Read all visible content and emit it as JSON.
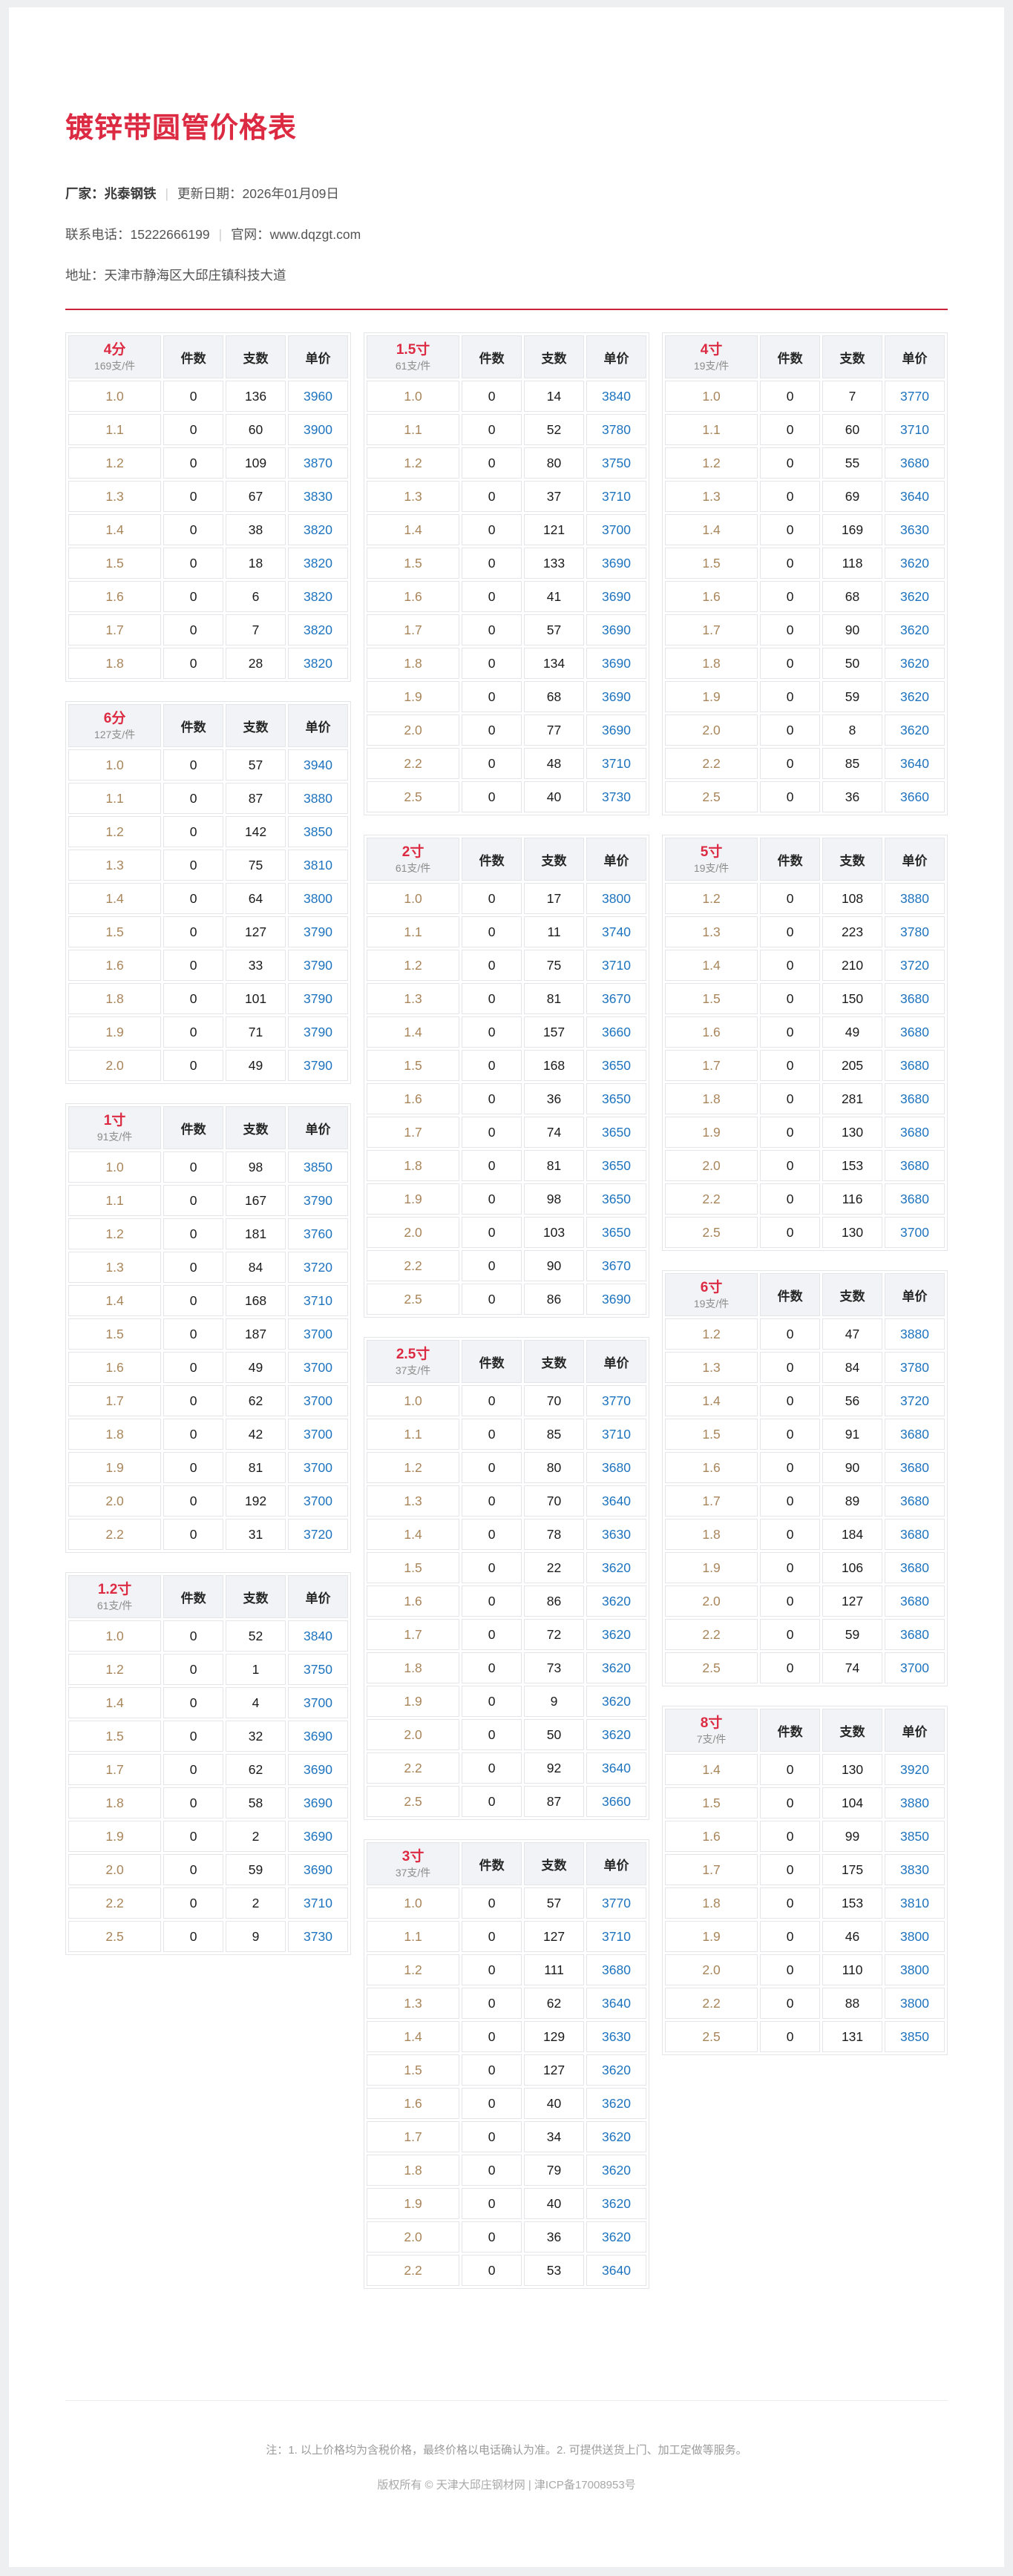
{
  "header": {
    "title": "镀锌带圆管价格表",
    "vendor_label": "厂家：",
    "vendor": "兆泰钢铁",
    "separator": "|",
    "updated_label": "更新日期：",
    "updated": "2026年01月09日",
    "phone_label": "联系电话：",
    "phone": "15222666199",
    "website_label": "官网：",
    "website": "www.dqzgt.com",
    "address_label": "地址：",
    "address": "天津市静海区大邱庄镇科技大道"
  },
  "table_columns": {
    "qty": "件数",
    "count": "支数",
    "price": "单价"
  },
  "columns": [
    {
      "tables": [
        {
          "size": "4分",
          "bundle": "169支/件",
          "rows": [
            [
              "1.0",
              "0",
              "136",
              "3960"
            ],
            [
              "1.1",
              "0",
              "60",
              "3900"
            ],
            [
              "1.2",
              "0",
              "109",
              "3870"
            ],
            [
              "1.3",
              "0",
              "67",
              "3830"
            ],
            [
              "1.4",
              "0",
              "38",
              "3820"
            ],
            [
              "1.5",
              "0",
              "18",
              "3820"
            ],
            [
              "1.6",
              "0",
              "6",
              "3820"
            ],
            [
              "1.7",
              "0",
              "7",
              "3820"
            ],
            [
              "1.8",
              "0",
              "28",
              "3820"
            ]
          ]
        },
        {
          "size": "6分",
          "bundle": "127支/件",
          "rows": [
            [
              "1.0",
              "0",
              "57",
              "3940"
            ],
            [
              "1.1",
              "0",
              "87",
              "3880"
            ],
            [
              "1.2",
              "0",
              "142",
              "3850"
            ],
            [
              "1.3",
              "0",
              "75",
              "3810"
            ],
            [
              "1.4",
              "0",
              "64",
              "3800"
            ],
            [
              "1.5",
              "0",
              "127",
              "3790"
            ],
            [
              "1.6",
              "0",
              "33",
              "3790"
            ],
            [
              "1.8",
              "0",
              "101",
              "3790"
            ],
            [
              "1.9",
              "0",
              "71",
              "3790"
            ],
            [
              "2.0",
              "0",
              "49",
              "3790"
            ]
          ]
        },
        {
          "size": "1寸",
          "bundle": "91支/件",
          "rows": [
            [
              "1.0",
              "0",
              "98",
              "3850"
            ],
            [
              "1.1",
              "0",
              "167",
              "3790"
            ],
            [
              "1.2",
              "0",
              "181",
              "3760"
            ],
            [
              "1.3",
              "0",
              "84",
              "3720"
            ],
            [
              "1.4",
              "0",
              "168",
              "3710"
            ],
            [
              "1.5",
              "0",
              "187",
              "3700"
            ],
            [
              "1.6",
              "0",
              "49",
              "3700"
            ],
            [
              "1.7",
              "0",
              "62",
              "3700"
            ],
            [
              "1.8",
              "0",
              "42",
              "3700"
            ],
            [
              "1.9",
              "0",
              "81",
              "3700"
            ],
            [
              "2.0",
              "0",
              "192",
              "3700"
            ],
            [
              "2.2",
              "0",
              "31",
              "3720"
            ]
          ]
        },
        {
          "size": "1.2寸",
          "bundle": "61支/件",
          "rows": [
            [
              "1.0",
              "0",
              "52",
              "3840"
            ],
            [
              "1.2",
              "0",
              "1",
              "3750"
            ],
            [
              "1.4",
              "0",
              "4",
              "3700"
            ],
            [
              "1.5",
              "0",
              "32",
              "3690"
            ],
            [
              "1.7",
              "0",
              "62",
              "3690"
            ],
            [
              "1.8",
              "0",
              "58",
              "3690"
            ],
            [
              "1.9",
              "0",
              "2",
              "3690"
            ],
            [
              "2.0",
              "0",
              "59",
              "3690"
            ],
            [
              "2.2",
              "0",
              "2",
              "3710"
            ],
            [
              "2.5",
              "0",
              "9",
              "3730"
            ]
          ]
        }
      ]
    },
    {
      "tables": [
        {
          "size": "1.5寸",
          "bundle": "61支/件",
          "rows": [
            [
              "1.0",
              "0",
              "14",
              "3840"
            ],
            [
              "1.1",
              "0",
              "52",
              "3780"
            ],
            [
              "1.2",
              "0",
              "80",
              "3750"
            ],
            [
              "1.3",
              "0",
              "37",
              "3710"
            ],
            [
              "1.4",
              "0",
              "121",
              "3700"
            ],
            [
              "1.5",
              "0",
              "133",
              "3690"
            ],
            [
              "1.6",
              "0",
              "41",
              "3690"
            ],
            [
              "1.7",
              "0",
              "57",
              "3690"
            ],
            [
              "1.8",
              "0",
              "134",
              "3690"
            ],
            [
              "1.9",
              "0",
              "68",
              "3690"
            ],
            [
              "2.0",
              "0",
              "77",
              "3690"
            ],
            [
              "2.2",
              "0",
              "48",
              "3710"
            ],
            [
              "2.5",
              "0",
              "40",
              "3730"
            ]
          ]
        },
        {
          "size": "2寸",
          "bundle": "61支/件",
          "rows": [
            [
              "1.0",
              "0",
              "17",
              "3800"
            ],
            [
              "1.1",
              "0",
              "11",
              "3740"
            ],
            [
              "1.2",
              "0",
              "75",
              "3710"
            ],
            [
              "1.3",
              "0",
              "81",
              "3670"
            ],
            [
              "1.4",
              "0",
              "157",
              "3660"
            ],
            [
              "1.5",
              "0",
              "168",
              "3650"
            ],
            [
              "1.6",
              "0",
              "36",
              "3650"
            ],
            [
              "1.7",
              "0",
              "74",
              "3650"
            ],
            [
              "1.8",
              "0",
              "81",
              "3650"
            ],
            [
              "1.9",
              "0",
              "98",
              "3650"
            ],
            [
              "2.0",
              "0",
              "103",
              "3650"
            ],
            [
              "2.2",
              "0",
              "90",
              "3670"
            ],
            [
              "2.5",
              "0",
              "86",
              "3690"
            ]
          ]
        },
        {
          "size": "2.5寸",
          "bundle": "37支/件",
          "rows": [
            [
              "1.0",
              "0",
              "70",
              "3770"
            ],
            [
              "1.1",
              "0",
              "85",
              "3710"
            ],
            [
              "1.2",
              "0",
              "80",
              "3680"
            ],
            [
              "1.3",
              "0",
              "70",
              "3640"
            ],
            [
              "1.4",
              "0",
              "78",
              "3630"
            ],
            [
              "1.5",
              "0",
              "22",
              "3620"
            ],
            [
              "1.6",
              "0",
              "86",
              "3620"
            ],
            [
              "1.7",
              "0",
              "72",
              "3620"
            ],
            [
              "1.8",
              "0",
              "73",
              "3620"
            ],
            [
              "1.9",
              "0",
              "9",
              "3620"
            ],
            [
              "2.0",
              "0",
              "50",
              "3620"
            ],
            [
              "2.2",
              "0",
              "92",
              "3640"
            ],
            [
              "2.5",
              "0",
              "87",
              "3660"
            ]
          ]
        },
        {
          "size": "3寸",
          "bundle": "37支/件",
          "rows": [
            [
              "1.0",
              "0",
              "57",
              "3770"
            ],
            [
              "1.1",
              "0",
              "127",
              "3710"
            ],
            [
              "1.2",
              "0",
              "111",
              "3680"
            ],
            [
              "1.3",
              "0",
              "62",
              "3640"
            ],
            [
              "1.4",
              "0",
              "129",
              "3630"
            ],
            [
              "1.5",
              "0",
              "127",
              "3620"
            ],
            [
              "1.6",
              "0",
              "40",
              "3620"
            ],
            [
              "1.7",
              "0",
              "34",
              "3620"
            ],
            [
              "1.8",
              "0",
              "79",
              "3620"
            ],
            [
              "1.9",
              "0",
              "40",
              "3620"
            ],
            [
              "2.0",
              "0",
              "36",
              "3620"
            ],
            [
              "2.2",
              "0",
              "53",
              "3640"
            ]
          ]
        }
      ]
    },
    {
      "tables": [
        {
          "size": "4寸",
          "bundle": "19支/件",
          "rows": [
            [
              "1.0",
              "0",
              "7",
              "3770"
            ],
            [
              "1.1",
              "0",
              "60",
              "3710"
            ],
            [
              "1.2",
              "0",
              "55",
              "3680"
            ],
            [
              "1.3",
              "0",
              "69",
              "3640"
            ],
            [
              "1.4",
              "0",
              "169",
              "3630"
            ],
            [
              "1.5",
              "0",
              "118",
              "3620"
            ],
            [
              "1.6",
              "0",
              "68",
              "3620"
            ],
            [
              "1.7",
              "0",
              "90",
              "3620"
            ],
            [
              "1.8",
              "0",
              "50",
              "3620"
            ],
            [
              "1.9",
              "0",
              "59",
              "3620"
            ],
            [
              "2.0",
              "0",
              "8",
              "3620"
            ],
            [
              "2.2",
              "0",
              "85",
              "3640"
            ],
            [
              "2.5",
              "0",
              "36",
              "3660"
            ]
          ]
        },
        {
          "size": "5寸",
          "bundle": "19支/件",
          "rows": [
            [
              "1.2",
              "0",
              "108",
              "3880"
            ],
            [
              "1.3",
              "0",
              "223",
              "3780"
            ],
            [
              "1.4",
              "0",
              "210",
              "3720"
            ],
            [
              "1.5",
              "0",
              "150",
              "3680"
            ],
            [
              "1.6",
              "0",
              "49",
              "3680"
            ],
            [
              "1.7",
              "0",
              "205",
              "3680"
            ],
            [
              "1.8",
              "0",
              "281",
              "3680"
            ],
            [
              "1.9",
              "0",
              "130",
              "3680"
            ],
            [
              "2.0",
              "0",
              "153",
              "3680"
            ],
            [
              "2.2",
              "0",
              "116",
              "3680"
            ],
            [
              "2.5",
              "0",
              "130",
              "3700"
            ]
          ]
        },
        {
          "size": "6寸",
          "bundle": "19支/件",
          "rows": [
            [
              "1.2",
              "0",
              "47",
              "3880"
            ],
            [
              "1.3",
              "0",
              "84",
              "3780"
            ],
            [
              "1.4",
              "0",
              "56",
              "3720"
            ],
            [
              "1.5",
              "0",
              "91",
              "3680"
            ],
            [
              "1.6",
              "0",
              "90",
              "3680"
            ],
            [
              "1.7",
              "0",
              "89",
              "3680"
            ],
            [
              "1.8",
              "0",
              "184",
              "3680"
            ],
            [
              "1.9",
              "0",
              "106",
              "3680"
            ],
            [
              "2.0",
              "0",
              "127",
              "3680"
            ],
            [
              "2.2",
              "0",
              "59",
              "3680"
            ],
            [
              "2.5",
              "0",
              "74",
              "3700"
            ]
          ]
        },
        {
          "size": "8寸",
          "bundle": "7支/件",
          "rows": [
            [
              "1.4",
              "0",
              "130",
              "3920"
            ],
            [
              "1.5",
              "0",
              "104",
              "3880"
            ],
            [
              "1.6",
              "0",
              "99",
              "3850"
            ],
            [
              "1.7",
              "0",
              "175",
              "3830"
            ],
            [
              "1.8",
              "0",
              "153",
              "3810"
            ],
            [
              "1.9",
              "0",
              "46",
              "3800"
            ],
            [
              "2.0",
              "0",
              "110",
              "3800"
            ],
            [
              "2.2",
              "0",
              "88",
              "3800"
            ],
            [
              "2.5",
              "0",
              "131",
              "3850"
            ]
          ]
        }
      ]
    }
  ],
  "footer": {
    "note": "注：1. 以上价格均为含税价格，最终价格以电话确认为准。2. 可提供送货上门、加工定做等服务。",
    "copyright": "版权所有 © 天津大邱庄钢材网 | 津ICP备17008953号"
  },
  "colors": {
    "accent_red": "#dc2a42",
    "rule_red": "#c9243a",
    "price_blue": "#1e73be",
    "size_tan": "#a9855a",
    "header_bg": "#f2f3f6"
  }
}
